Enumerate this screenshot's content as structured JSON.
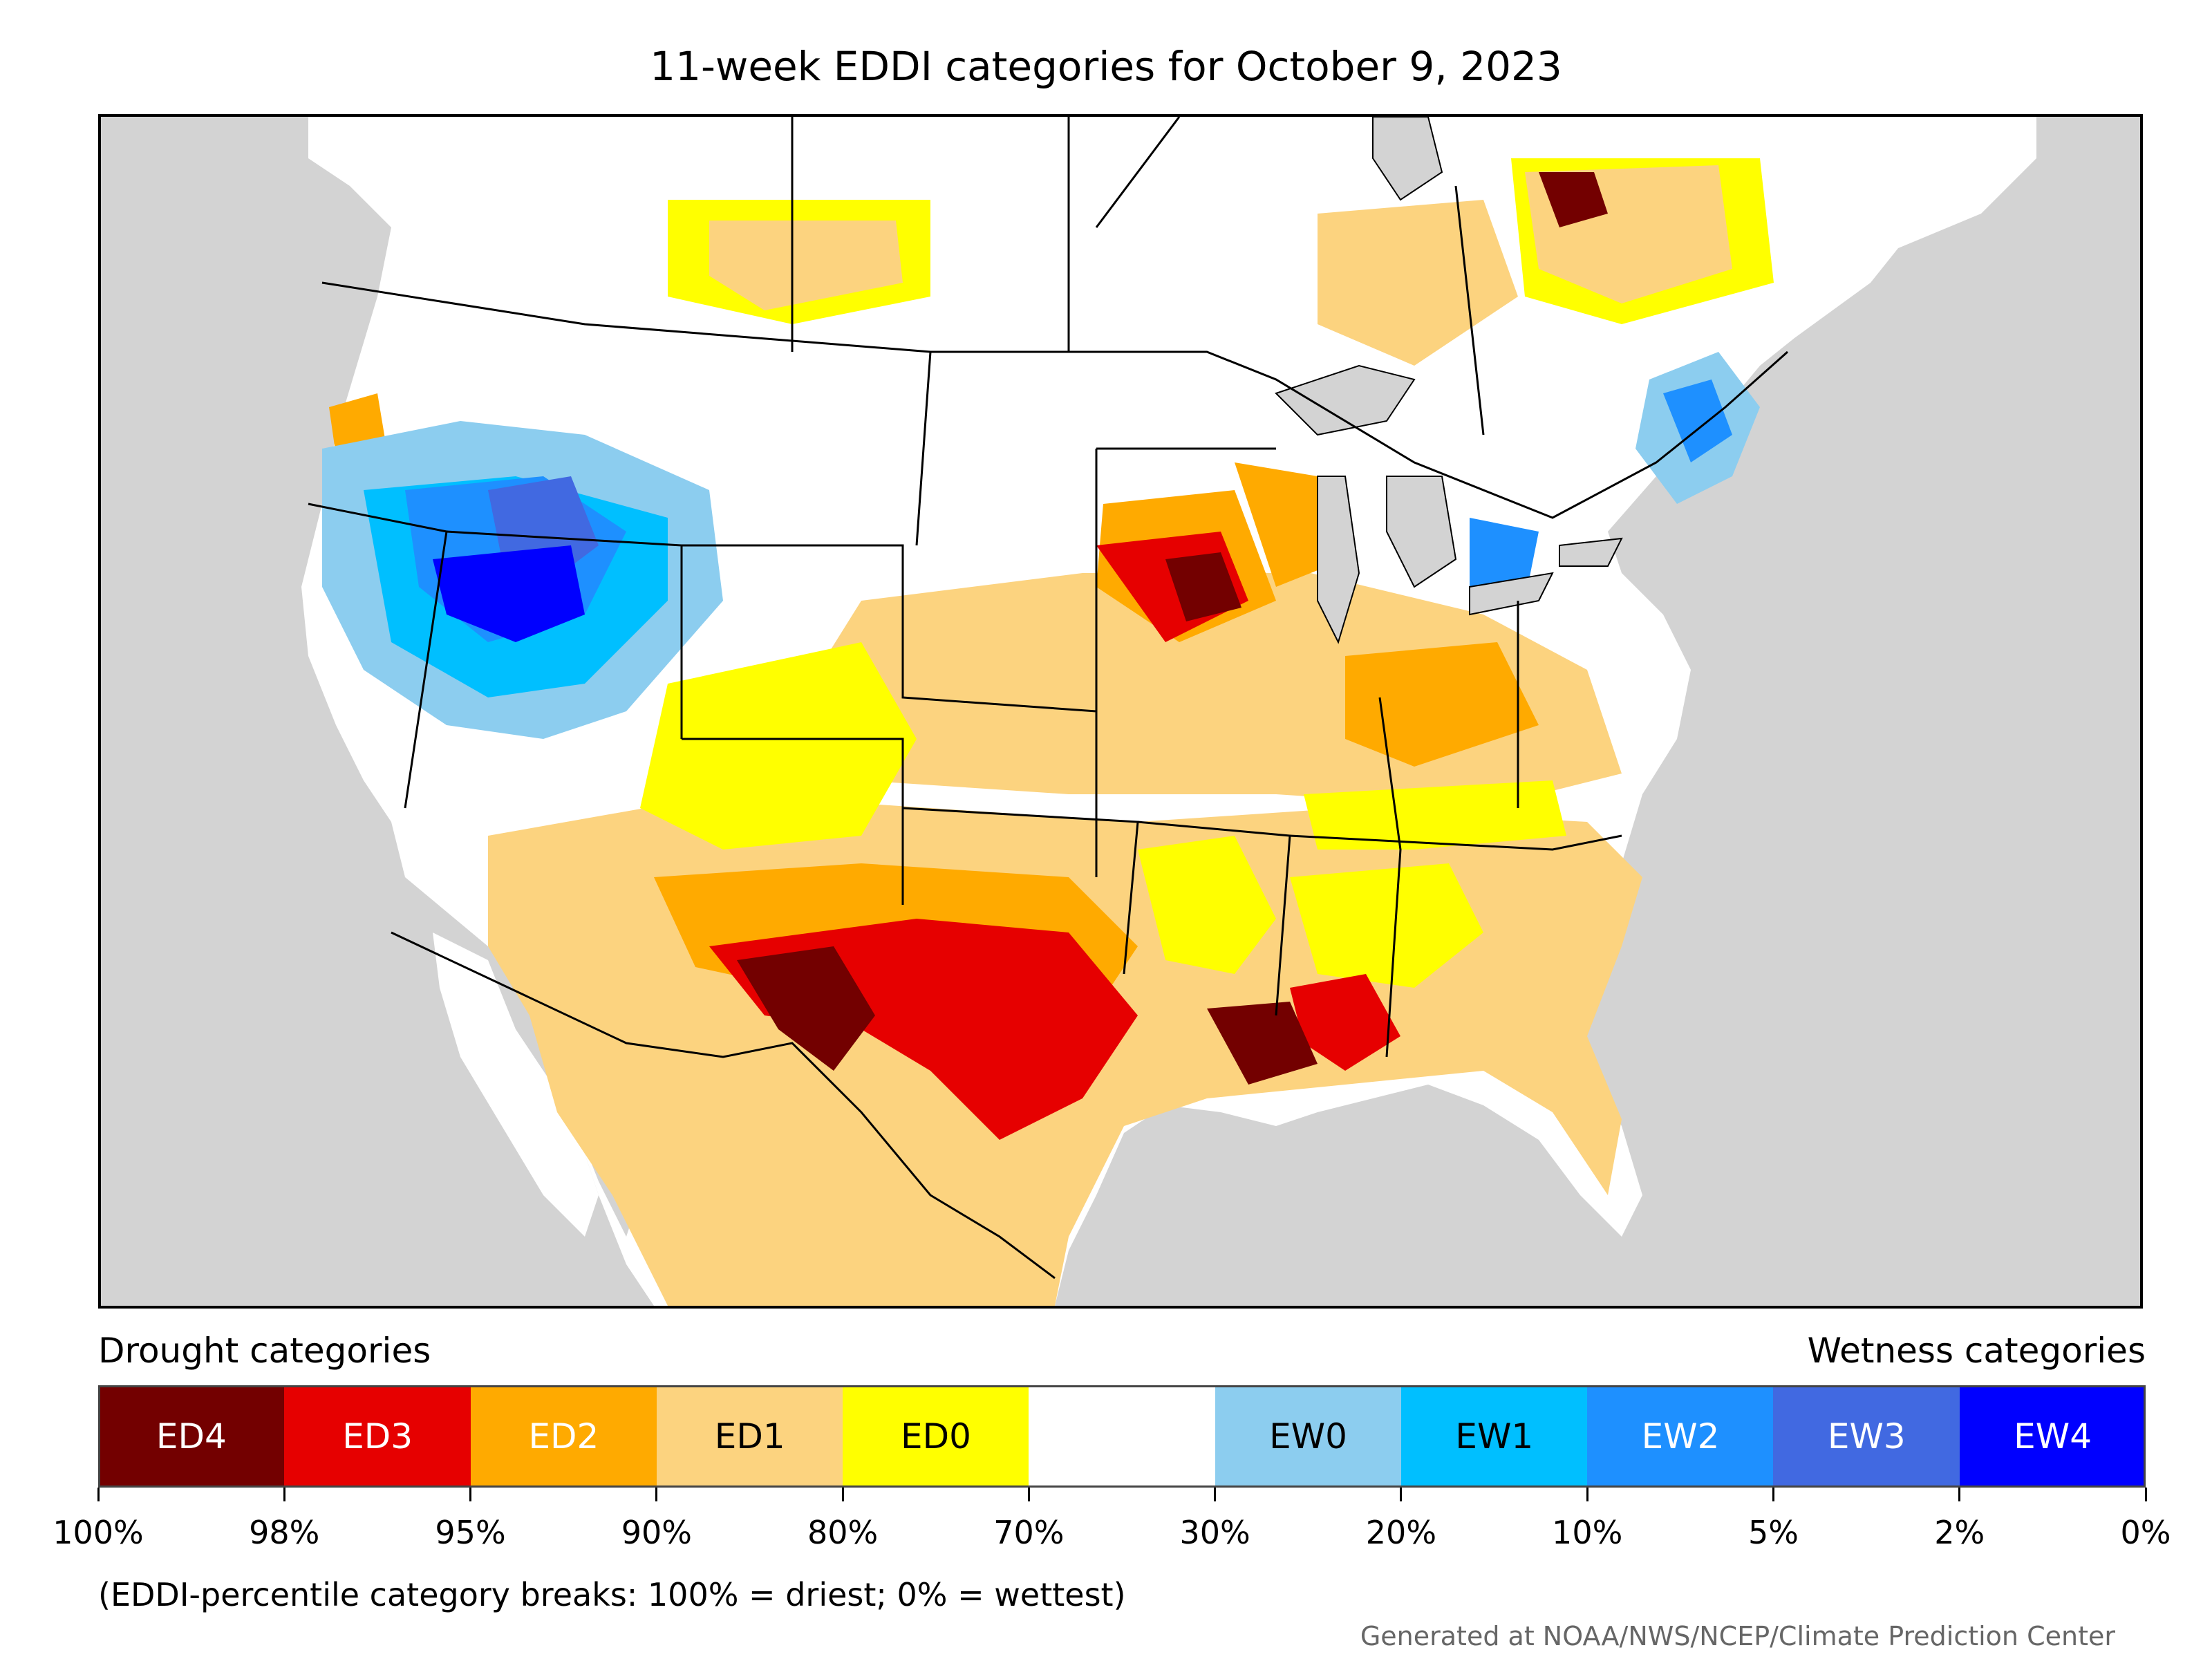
{
  "title": "11-week EDDI categories for October 9, 2023",
  "legend": {
    "drought_heading": "Drought categories",
    "wetness_heading": "Wetness categories",
    "categories": [
      {
        "label": "ED4",
        "color": "#730000",
        "text_color": "#ffffff"
      },
      {
        "label": "ED3",
        "color": "#e60000",
        "text_color": "#ffffff"
      },
      {
        "label": "ED2",
        "color": "#ffaa00",
        "text_color": "#ffffff"
      },
      {
        "label": "ED1",
        "color": "#fcd37f",
        "text_color": "#000000"
      },
      {
        "label": "ED0",
        "color": "#ffff00",
        "text_color": "#000000"
      },
      {
        "label": "",
        "color": "#ffffff",
        "text_color": "#000000"
      },
      {
        "label": "EW0",
        "color": "#8ccdef",
        "text_color": "#000000"
      },
      {
        "label": "EW1",
        "color": "#00bfff",
        "text_color": "#000000"
      },
      {
        "label": "EW2",
        "color": "#1e90ff",
        "text_color": "#ffffff"
      },
      {
        "label": "EW3",
        "color": "#4169e1",
        "text_color": "#ffffff"
      },
      {
        "label": "EW4",
        "color": "#0000ff",
        "text_color": "#ffffff"
      }
    ],
    "tick_labels": [
      "100%",
      "98%",
      "95%",
      "90%",
      "80%",
      "70%",
      "30%",
      "20%",
      "10%",
      "5%",
      "2%",
      "0%"
    ]
  },
  "note": "(EDDI-percentile category breaks: 100% = driest; 0% = wettest)",
  "credit": "Generated at NOAA/NWS/NCEP/Climate Prediction Center",
  "map_colors": {
    "ocean": "#d3d3d3",
    "land": "#ffffff",
    "border": "#000000"
  }
}
